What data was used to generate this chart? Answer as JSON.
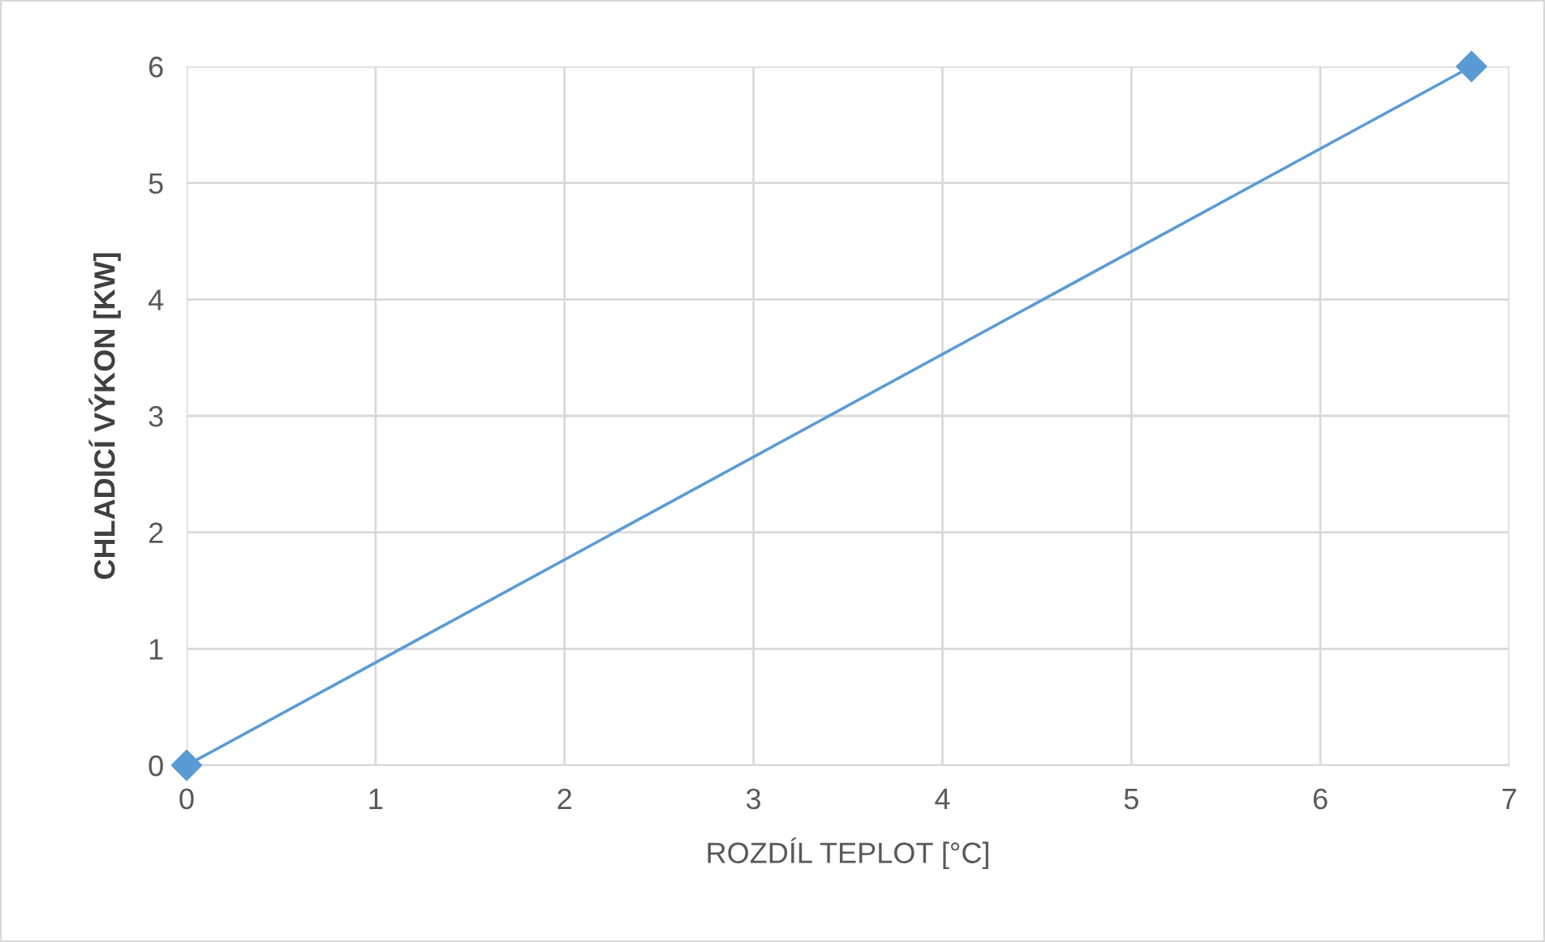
{
  "chart_data": {
    "type": "line",
    "xlabel": "ROZDÍL TEPLOT [°C]",
    "ylabel": "CHLADICÍ VÝKON [KW]",
    "x": [
      0,
      6.8
    ],
    "series": [
      {
        "color": "#5b9bd5",
        "values": [
          0,
          6
        ]
      }
    ],
    "marker": "diamond",
    "line_style": "solid",
    "xlim": [
      0,
      7
    ],
    "ylim": [
      0,
      6
    ],
    "xticks": [
      0,
      1,
      2,
      3,
      4,
      5,
      6,
      7
    ],
    "yticks": [
      0,
      1,
      2,
      3,
      4,
      5,
      6
    ],
    "grid": true,
    "legend": false
  }
}
